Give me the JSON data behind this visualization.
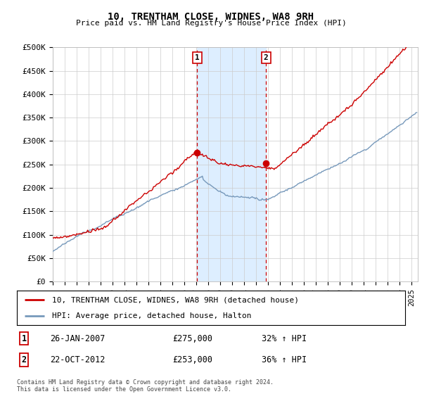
{
  "title": "10, TRENTHAM CLOSE, WIDNES, WA8 9RH",
  "subtitle": "Price paid vs. HM Land Registry's House Price Index (HPI)",
  "ylim": [
    0,
    500000
  ],
  "yticks": [
    0,
    50000,
    100000,
    150000,
    200000,
    250000,
    300000,
    350000,
    400000,
    450000,
    500000
  ],
  "ytick_labels": [
    "£0",
    "£50K",
    "£100K",
    "£150K",
    "£200K",
    "£250K",
    "£300K",
    "£350K",
    "£400K",
    "£450K",
    "£500K"
  ],
  "xlim_start": 1995.0,
  "xlim_end": 2025.5,
  "sale1_x": 2007.07,
  "sale1_y": 275000,
  "sale1_label": "26-JAN-2007",
  "sale1_price": "£275,000",
  "sale1_hpi": "32% ↑ HPI",
  "sale2_x": 2012.81,
  "sale2_y": 253000,
  "sale2_label": "22-OCT-2012",
  "sale2_price": "£253,000",
  "sale2_hpi": "36% ↑ HPI",
  "red_color": "#cc0000",
  "blue_color": "#7799bb",
  "shade_color": "#ddeeff",
  "grid_color": "#cccccc",
  "bg_color": "#ffffff",
  "legend_line1": "10, TRENTHAM CLOSE, WIDNES, WA8 9RH (detached house)",
  "legend_line2": "HPI: Average price, detached house, Halton",
  "footnote": "Contains HM Land Registry data © Crown copyright and database right 2024.\nThis data is licensed under the Open Government Licence v3.0."
}
